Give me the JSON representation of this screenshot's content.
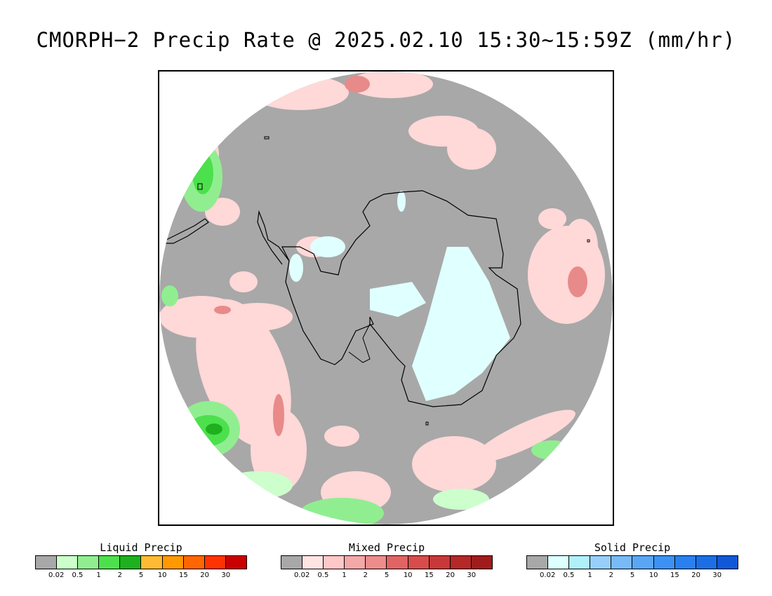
{
  "title": "CMORPH−2 Precip Rate @ 2025.02.10 15:30~15:59Z (mm/hr)",
  "map": {
    "projection": "south polar stereographic",
    "background_color": "#a8a8a8",
    "coastline_color": "#000000"
  },
  "legends": [
    {
      "title": "Liquid Precip",
      "colors": [
        "#a8a8a8",
        "#ccffcc",
        "#90ee90",
        "#4de04d",
        "#1fb01f",
        "#ffbb33",
        "#ff9900",
        "#ff6600",
        "#ff3300",
        "#cc0000"
      ],
      "ticks": [
        "0.02",
        "0.5",
        "1",
        "2",
        "5",
        "10",
        "15",
        "20",
        "30"
      ]
    },
    {
      "title": "Mixed Precip",
      "colors": [
        "#a8a8a8",
        "#ffe4e4",
        "#ffc8c8",
        "#f4a8a8",
        "#ee8c8c",
        "#e06464",
        "#d84c4c",
        "#c83838",
        "#b42828",
        "#a01c1c"
      ],
      "ticks": [
        "0.02",
        "0.5",
        "1",
        "2",
        "5",
        "10",
        "15",
        "20",
        "30"
      ]
    },
    {
      "title": "Solid Precip",
      "colors": [
        "#a8a8a8",
        "#e0ffff",
        "#b0f0f8",
        "#96d0fa",
        "#78baf8",
        "#5aa6f6",
        "#3c92f4",
        "#2a80ee",
        "#1c6ee4",
        "#1058d8"
      ],
      "ticks": [
        "0.02",
        "0.5",
        "1",
        "2",
        "5",
        "10",
        "15",
        "20",
        "30"
      ]
    }
  ]
}
